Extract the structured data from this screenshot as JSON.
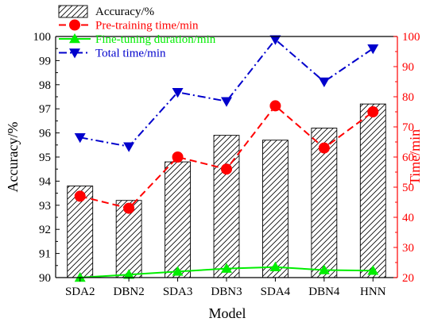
{
  "chart_data": {
    "type": "bar",
    "categories": [
      "SDA2",
      "DBN2",
      "SDA3",
      "DBN3",
      "SDA4",
      "DBN4",
      "HNN"
    ],
    "xlabel": "Model",
    "ylabel": "Accuracy/%",
    "y2label": "Time/min",
    "ylim": [
      90,
      100
    ],
    "y2lim": [
      20,
      100
    ],
    "yticks": [
      "90",
      "91",
      "92",
      "93",
      "94",
      "95",
      "96",
      "97",
      "98",
      "99",
      "100"
    ],
    "y2ticks": [
      "20",
      "30",
      "40",
      "50",
      "60",
      "70",
      "80",
      "90",
      "100"
    ],
    "legend_position": "top-left",
    "colors": {
      "axis_left": "#000000",
      "axis_right": "#ff0000",
      "bar_stroke": "#000000",
      "pretraining": "#ff0000",
      "finetuning": "#00ee00",
      "total": "#0000cc"
    },
    "series": [
      {
        "name": "Accuracy/%",
        "kind": "bar",
        "axis": "left",
        "values": [
          93.8,
          93.2,
          94.8,
          95.9,
          95.7,
          96.2,
          97.2
        ]
      },
      {
        "name": "Pre-training time/min",
        "kind": "line",
        "axis": "right",
        "marker": "circle",
        "dash": "dash",
        "values": [
          47,
          43,
          60,
          56,
          77,
          63,
          75
        ]
      },
      {
        "name": "Fine-tuning duration/min",
        "kind": "line",
        "axis": "right",
        "marker": "triangle-up",
        "dash": "solid",
        "values": [
          20,
          21,
          22,
          23,
          23.5,
          22.5,
          22.3
        ]
      },
      {
        "name": "Total time/min",
        "kind": "line",
        "axis": "right",
        "marker": "triangle-down",
        "dash": "dashdot",
        "values": [
          66.5,
          63.5,
          81.5,
          78.5,
          99,
          85,
          96
        ]
      }
    ]
  }
}
